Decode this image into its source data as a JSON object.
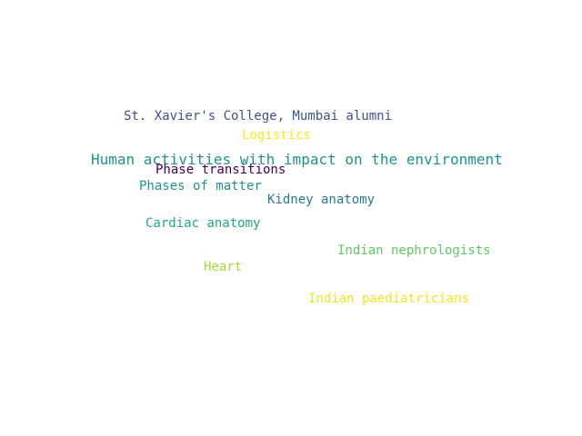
{
  "words": [
    {
      "text": "St. Xavier's College, Mumbai alumni",
      "color": "#3b528b"
    },
    {
      "text": "Logistics",
      "color": "#fde725"
    },
    {
      "text": "Human activities with impact on the environment",
      "color": "#21918c"
    },
    {
      "text": "Phase transitions",
      "color": "#440154"
    },
    {
      "text": "Phases of matter",
      "color": "#21918c"
    },
    {
      "text": "Kidney anatomy",
      "color": "#2a788e"
    },
    {
      "text": "Cardiac anatomy",
      "color": "#22a884"
    },
    {
      "text": "Indian nephrologists",
      "color": "#5ec962"
    },
    {
      "text": "Heart",
      "color": "#a0da39"
    },
    {
      "text": "Indian paediatricians",
      "color": "#f1e51d"
    }
  ]
}
